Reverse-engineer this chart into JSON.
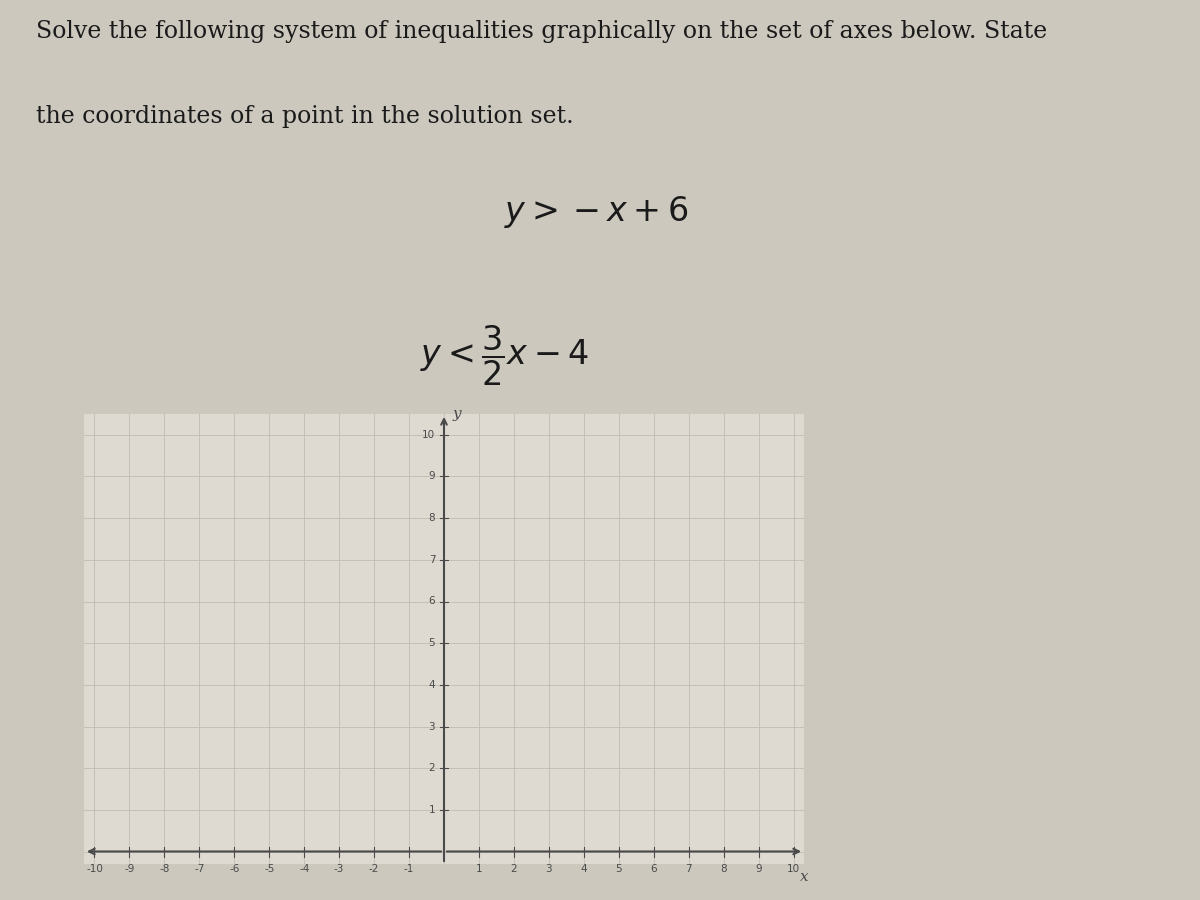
{
  "title_line1": "Solve the following system of inequalities graphically on the set of axes below. State",
  "title_line2": "the coordinates of a point in the solution set.",
  "xmin": -10,
  "xmax": 10,
  "ymin": 0,
  "ymax": 10,
  "x_ticks": [
    -10,
    -9,
    -8,
    -7,
    -6,
    -5,
    -4,
    -3,
    -2,
    -1,
    1,
    2,
    3,
    4,
    5,
    6,
    7,
    8,
    9,
    10
  ],
  "y_ticks": [
    1,
    2,
    3,
    4,
    5,
    6,
    7,
    8,
    9,
    10
  ],
  "bg_color": "#dedad2",
  "grid_color": "#bfbbaf",
  "axis_color": "#4a4a4a",
  "text_color": "#1a1a1a",
  "fig_bg": "#ccc8be"
}
